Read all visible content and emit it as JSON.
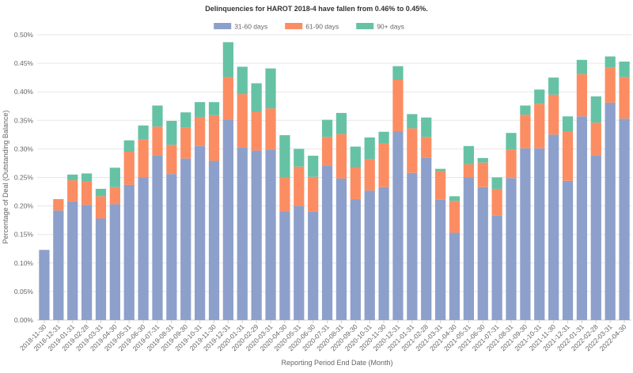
{
  "chart_data": {
    "type": "bar",
    "stacked": true,
    "title": "Delinquencies for HAROT 2018-4 have fallen from 0.46% to 0.45%.",
    "xlabel": "Reporting Period End Date (Month)",
    "ylabel": "Percentage of Deal (Outstanding Balance)",
    "ylim": [
      0,
      0.5
    ],
    "yticks": [
      "0.00%",
      "0.05%",
      "0.10%",
      "0.15%",
      "0.20%",
      "0.25%",
      "0.30%",
      "0.35%",
      "0.40%",
      "0.45%",
      "0.50%"
    ],
    "grid": true,
    "legend_position": "top",
    "categories": [
      "2018-11-30",
      "2018-12-31",
      "2019-01-31",
      "2019-02-28",
      "2019-03-31",
      "2019-04-30",
      "2019-05-31",
      "2019-06-30",
      "2019-07-31",
      "2019-08-31",
      "2019-09-30",
      "2019-10-31",
      "2019-11-30",
      "2019-12-31",
      "2020-01-31",
      "2020-02-29",
      "2020-03-31",
      "2020-04-30",
      "2020-05-31",
      "2020-06-30",
      "2020-07-31",
      "2020-08-31",
      "2020-09-30",
      "2020-10-31",
      "2020-11-30",
      "2020-12-31",
      "2021-01-31",
      "2021-02-28",
      "2021-03-31",
      "2021-04-30",
      "2021-05-31",
      "2021-06-30",
      "2021-07-31",
      "2021-08-31",
      "2021-09-30",
      "2021-10-31",
      "2021-11-30",
      "2021-12-31",
      "2022-01-31",
      "2022-02-28",
      "2022-03-31",
      "2022-04-30"
    ],
    "series": [
      {
        "name": "31-60 days",
        "color": "#8da0cb",
        "values": [
          0.123,
          0.192,
          0.208,
          0.202,
          0.178,
          0.203,
          0.237,
          0.25,
          0.289,
          0.256,
          0.283,
          0.305,
          0.279,
          0.351,
          0.303,
          0.297,
          0.299,
          0.191,
          0.2,
          0.19,
          0.271,
          0.248,
          0.212,
          0.227,
          0.233,
          0.331,
          0.258,
          0.284,
          0.211,
          0.153,
          0.25,
          0.233,
          0.183,
          0.249,
          0.301,
          0.301,
          0.325,
          0.244,
          0.357,
          0.289,
          0.381,
          0.353
        ]
      },
      {
        "name": "61-90 days",
        "color": "#fc8d62",
        "values": [
          0.0,
          0.02,
          0.037,
          0.041,
          0.039,
          0.03,
          0.058,
          0.066,
          0.05,
          0.051,
          0.054,
          0.051,
          0.08,
          0.075,
          0.093,
          0.068,
          0.072,
          0.059,
          0.069,
          0.061,
          0.05,
          0.078,
          0.056,
          0.055,
          0.076,
          0.09,
          0.078,
          0.037,
          0.05,
          0.056,
          0.023,
          0.043,
          0.047,
          0.05,
          0.059,
          0.078,
          0.07,
          0.087,
          0.074,
          0.057,
          0.062,
          0.073
        ]
      },
      {
        "name": "90+ days",
        "color": "#66c2a5",
        "values": [
          0.0,
          0.0,
          0.01,
          0.014,
          0.013,
          0.034,
          0.02,
          0.025,
          0.037,
          0.042,
          0.027,
          0.026,
          0.023,
          0.061,
          0.048,
          0.05,
          0.07,
          0.074,
          0.031,
          0.037,
          0.03,
          0.037,
          0.036,
          0.038,
          0.021,
          0.024,
          0.025,
          0.034,
          0.004,
          0.008,
          0.032,
          0.008,
          0.02,
          0.029,
          0.016,
          0.025,
          0.03,
          0.026,
          0.025,
          0.046,
          0.019,
          0.027
        ]
      }
    ]
  }
}
